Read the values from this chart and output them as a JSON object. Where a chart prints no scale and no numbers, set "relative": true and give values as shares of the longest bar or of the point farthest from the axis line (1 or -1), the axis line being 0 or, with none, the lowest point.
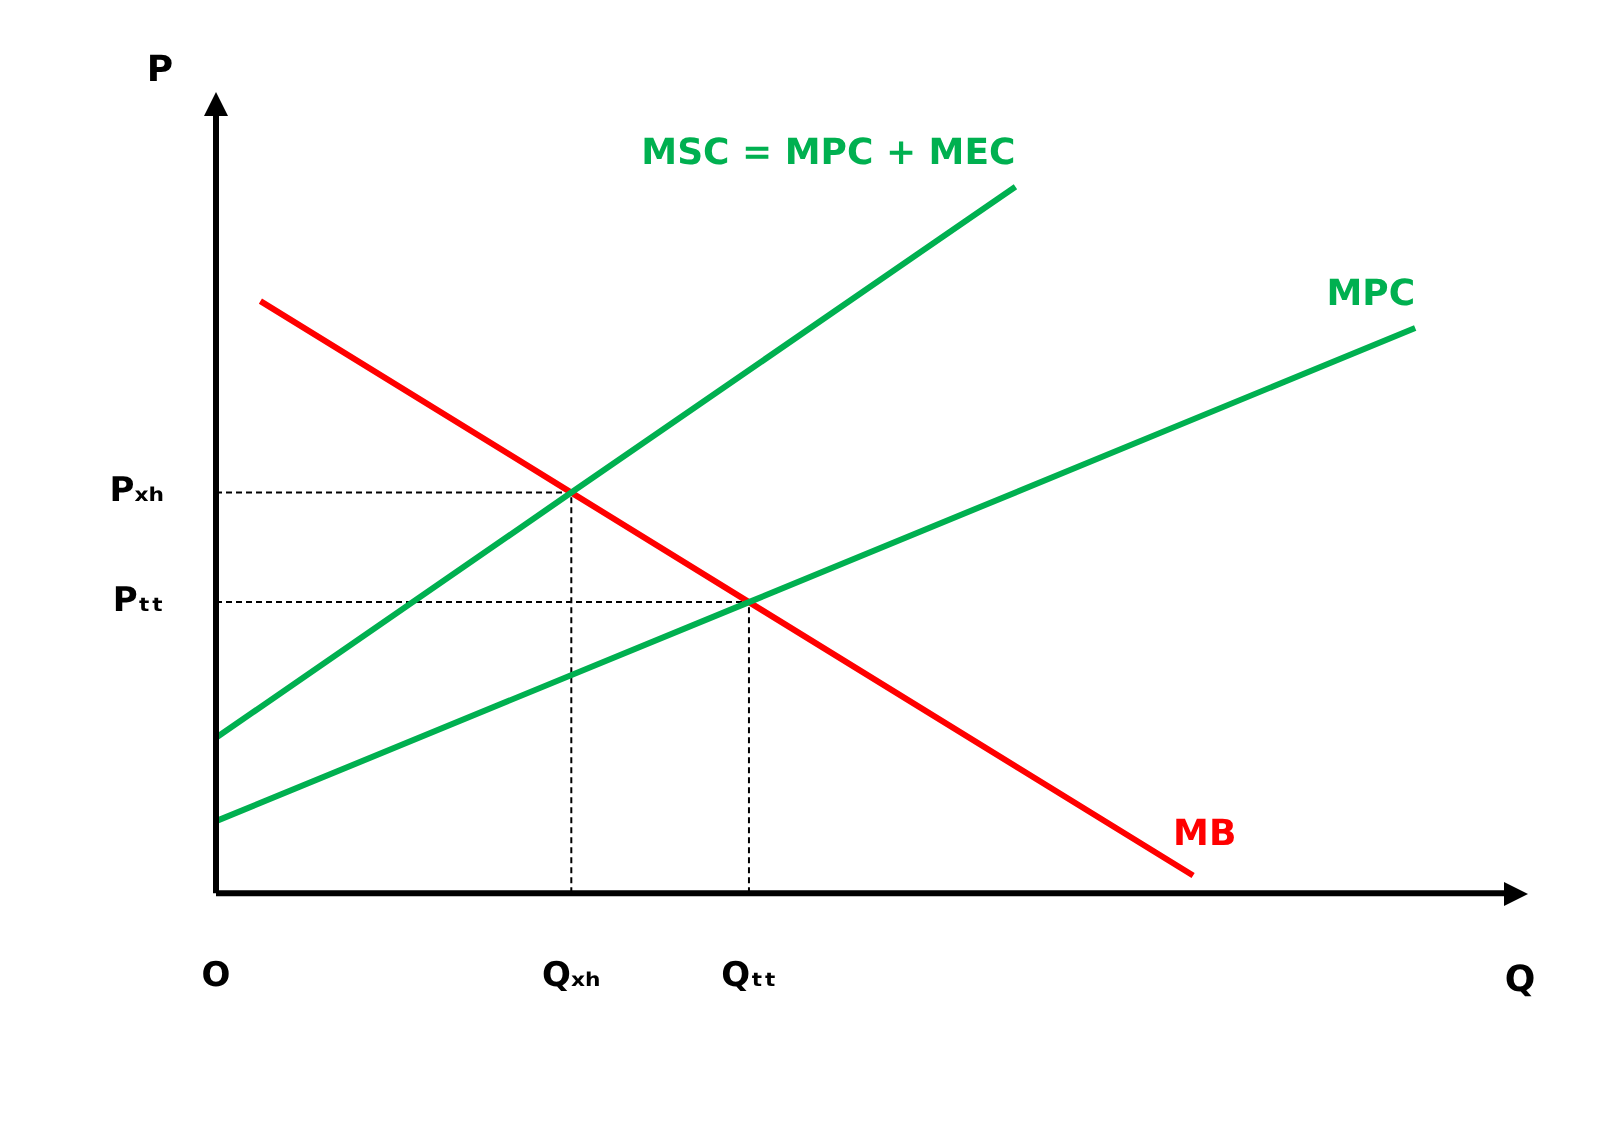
{
  "chart_data": {
    "type": "line",
    "relative": true,
    "xlabel": "Q",
    "ylabel": "P",
    "categories": [
      "O",
      null,
      null,
      null,
      null,
      null,
      null,
      null,
      "Qₓₕ",
      null,
      null,
      null,
      "Qₜₜ",
      null,
      null,
      null,
      null,
      null,
      null,
      null,
      null,
      null,
      null,
      null,
      null,
      null,
      null,
      null,
      null,
      null
    ],
    "ref_lines": [
      {
        "axis": "x",
        "value": "Qₓₕ",
        "color": "#000000",
        "line_style": "dashed"
      },
      {
        "axis": "x",
        "value": "Qₜₜ",
        "color": "#000000",
        "line_style": "dashed"
      }
    ],
    "legend": false,
    "marker": "none",
    "line_style": "solid",
    "series": [
      {
        "name": "MSC = MPC + MEC",
        "color": "#00b050",
        "values": [
          0.22,
          null,
          null,
          null,
          null,
          null,
          null,
          null,
          0.567,
          null,
          null,
          null,
          null,
          null,
          null,
          null,
          null,
          null,
          1,
          null,
          null,
          null,
          null,
          null,
          null,
          null,
          null,
          null,
          null,
          null
        ]
      },
      {
        "name": "MPC",
        "color": "#00b050",
        "values": [
          0.102,
          null,
          null,
          null,
          null,
          null,
          null,
          null,
          null,
          null,
          null,
          null,
          0.412,
          null,
          null,
          null,
          null,
          null,
          null,
          null,
          null,
          null,
          null,
          null,
          null,
          null,
          null,
          0.8,
          null,
          null
        ]
      },
      {
        "name": "MB",
        "color": "#ff0000",
        "values": [
          null,
          0.838,
          null,
          null,
          null,
          null,
          null,
          null,
          0.567,
          null,
          null,
          null,
          0.412,
          null,
          null,
          null,
          null,
          null,
          null,
          null,
          null,
          null,
          0.025,
          null,
          null,
          null,
          null,
          null,
          null,
          null
        ]
      },
      {
        "name": "Pₓₕ",
        "color": "#000000",
        "line_style": "dashed",
        "values": [
          0.567,
          null,
          null,
          null,
          null,
          null,
          null,
          null,
          0.567,
          null,
          null,
          null,
          null,
          null,
          null,
          null,
          null,
          null,
          null,
          null,
          null,
          null,
          null,
          null,
          null,
          null,
          null,
          null,
          null,
          null
        ]
      },
      {
        "name": "Pₜₜ",
        "color": "#000000",
        "line_style": "dashed",
        "values": [
          0.412,
          null,
          null,
          null,
          null,
          null,
          null,
          null,
          null,
          null,
          null,
          null,
          0.412,
          null,
          null,
          null,
          null,
          null,
          null,
          null,
          null,
          null,
          null,
          null,
          null,
          null,
          null,
          null,
          null,
          null
        ]
      }
    ]
  }
}
